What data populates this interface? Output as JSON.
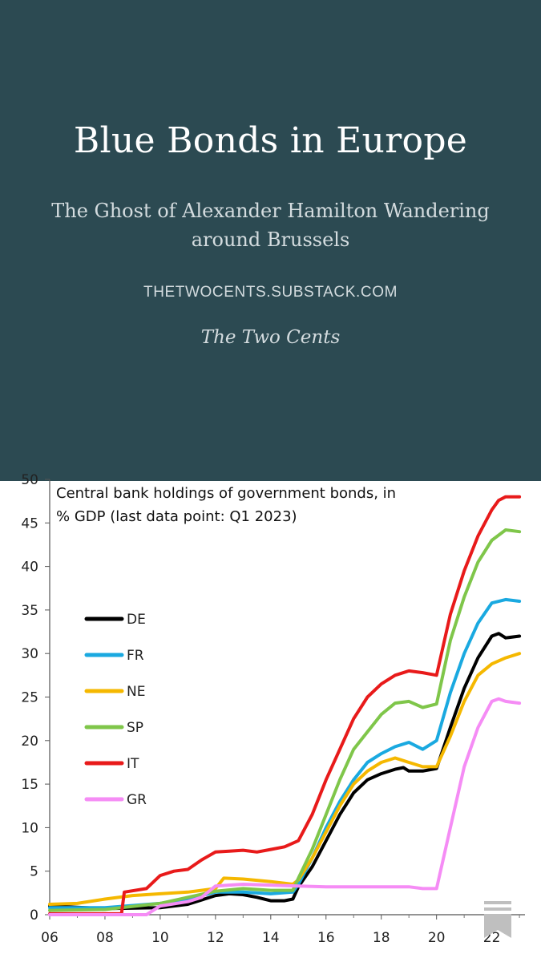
{
  "header": {
    "title": "Blue Bonds in Europe",
    "subtitle": "The Ghost of Alexander Hamilton Wandering around Brussels",
    "site": "THETWOCENTS.SUBSTACK.COM",
    "author": "The Two Cents"
  },
  "icons": {
    "bookmark": "bookmark-icon"
  },
  "chart_data": {
    "type": "line",
    "title_lines": [
      "Central bank holdings of government bonds, in",
      "% GDP (last data point: Q1 2023)"
    ],
    "xlabel": "",
    "ylabel": "",
    "xlim": [
      2006,
      2023.2
    ],
    "ylim": [
      0,
      50
    ],
    "x_ticks": [
      2006,
      2008,
      2010,
      2012,
      2014,
      2016,
      2018,
      2020,
      2022
    ],
    "x_tick_labels": [
      "06",
      "08",
      "10",
      "12",
      "14",
      "16",
      "18",
      "20",
      "22"
    ],
    "y_ticks": [
      0,
      5,
      10,
      15,
      20,
      25,
      30,
      35,
      40,
      45,
      50
    ],
    "y_tick_labels": [
      "0",
      "5",
      "10",
      "15",
      "20",
      "25",
      "30",
      "35",
      "40",
      "45",
      "50"
    ],
    "grid": false,
    "legend_position": "left",
    "series": [
      {
        "name": "DE",
        "color": "#000000",
        "x": [
          2006,
          2008,
          2010,
          2011,
          2012,
          2012.5,
          2013,
          2013.5,
          2014,
          2014.5,
          2014.8,
          2015,
          2015.5,
          2016,
          2016.5,
          2017,
          2017.5,
          2018,
          2018.5,
          2018.8,
          2019,
          2019.5,
          2020,
          2020.5,
          2021,
          2021.5,
          2022,
          2022.25,
          2022.5,
          2023
        ],
        "y": [
          1,
          0.7,
          0.8,
          1.2,
          2.2,
          2.4,
          2.3,
          2.0,
          1.6,
          1.6,
          1.8,
          3.2,
          5.5,
          8.5,
          11.5,
          14.0,
          15.5,
          16.2,
          16.7,
          16.9,
          16.5,
          16.5,
          16.8,
          21.5,
          26.0,
          29.5,
          32.0,
          32.3,
          31.8,
          32.0
        ]
      },
      {
        "name": "FR",
        "color": "#1aa9e0",
        "x": [
          2006,
          2008,
          2010,
          2011,
          2012,
          2013,
          2014,
          2014.8,
          2015,
          2015.5,
          2016,
          2016.5,
          2017,
          2017.5,
          2018,
          2018.5,
          2019,
          2019.5,
          2020,
          2020.5,
          2021,
          2021.5,
          2022,
          2022.5,
          2023
        ],
        "y": [
          0.8,
          0.8,
          1.3,
          1.8,
          2.6,
          2.6,
          2.4,
          2.6,
          3.5,
          6.5,
          10.0,
          13.0,
          15.5,
          17.5,
          18.5,
          19.3,
          19.8,
          19.0,
          20.0,
          25.5,
          30.0,
          33.5,
          35.8,
          36.2,
          36.0
        ]
      },
      {
        "name": "NE",
        "color": "#f5b800",
        "x": [
          2006,
          2007,
          2008,
          2009,
          2010,
          2011,
          2012,
          2012.3,
          2013,
          2014,
          2014.8,
          2015,
          2015.5,
          2016,
          2016.5,
          2017,
          2017.5,
          2018,
          2018.5,
          2019,
          2019.5,
          2020,
          2020.5,
          2021,
          2021.5,
          2022,
          2022.5,
          2023
        ],
        "y": [
          1.2,
          1.3,
          1.8,
          2.2,
          2.4,
          2.6,
          3.0,
          4.2,
          4.1,
          3.8,
          3.5,
          4.0,
          6.5,
          9.5,
          12.5,
          15.0,
          16.5,
          17.5,
          18.0,
          17.5,
          17.0,
          17.0,
          20.5,
          24.5,
          27.5,
          28.8,
          29.5,
          30.0
        ]
      },
      {
        "name": "SP",
        "color": "#7fc64a",
        "x": [
          2006,
          2008,
          2010,
          2011,
          2012,
          2013,
          2014,
          2014.8,
          2015,
          2015.5,
          2016,
          2016.5,
          2017,
          2017.5,
          2018,
          2018.5,
          2019,
          2019.5,
          2020,
          2020.5,
          2021,
          2021.5,
          2022,
          2022.5,
          2023
        ],
        "y": [
          0.5,
          0.6,
          1.3,
          2.0,
          2.7,
          3.0,
          2.8,
          2.8,
          4.2,
          7.5,
          11.5,
          15.5,
          19.0,
          21.0,
          23.0,
          24.3,
          24.5,
          23.8,
          24.2,
          31.5,
          36.5,
          40.5,
          43.0,
          44.2,
          44.0
        ]
      },
      {
        "name": "IT",
        "color": "#e81a1a",
        "x": [
          2006,
          2008.6,
          2008.7,
          2009.5,
          2010,
          2010.5,
          2011,
          2011.5,
          2012,
          2012.5,
          2013,
          2013.5,
          2014,
          2014.5,
          2015,
          2015.5,
          2016,
          2016.5,
          2017,
          2017.5,
          2018,
          2018.5,
          2019,
          2019.5,
          2020,
          2020.5,
          2021,
          2021.5,
          2022,
          2022.25,
          2022.5,
          2023
        ],
        "y": [
          0.1,
          0.1,
          2.6,
          3.0,
          4.5,
          5.0,
          5.2,
          6.3,
          7.2,
          7.3,
          7.4,
          7.2,
          7.5,
          7.8,
          8.5,
          11.5,
          15.5,
          19.0,
          22.5,
          25.0,
          26.5,
          27.5,
          28.0,
          27.8,
          27.5,
          34.5,
          39.5,
          43.5,
          46.5,
          47.6,
          48.0,
          48.0
        ]
      },
      {
        "name": "GR",
        "color": "#f58cf5",
        "x": [
          2006,
          2009.5,
          2010,
          2011,
          2011.5,
          2012,
          2013,
          2014,
          2015,
          2016,
          2017,
          2018,
          2019,
          2019.5,
          2020,
          2020.5,
          2021,
          2021.5,
          2022,
          2022.25,
          2022.5,
          2023
        ],
        "y": [
          0,
          0,
          1.0,
          1.5,
          2.0,
          3.3,
          3.5,
          3.4,
          3.3,
          3.2,
          3.2,
          3.2,
          3.2,
          3.0,
          3.0,
          10.0,
          17.0,
          21.5,
          24.5,
          24.8,
          24.5,
          24.3
        ]
      }
    ]
  }
}
